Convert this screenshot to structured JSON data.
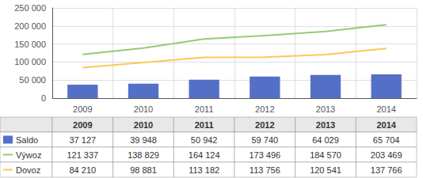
{
  "chart_data": {
    "type": "bar",
    "categories": [
      "2009",
      "2010",
      "2011",
      "2012",
      "2013",
      "2014"
    ],
    "series": [
      {
        "name": "Saldo",
        "type": "bar",
        "values": [
          37127,
          39948,
          50942,
          59740,
          64029,
          65704
        ],
        "value_labels": [
          "37 127",
          "39 948",
          "50 942",
          "59 740",
          "64 029",
          "65 704"
        ]
      },
      {
        "name": "Výwoz",
        "type": "line",
        "values": [
          121337,
          138829,
          164124,
          173496,
          184570,
          203469
        ],
        "value_labels": [
          "121 337",
          "138 829",
          "164 124",
          "173 496",
          "184 570",
          "203 469"
        ]
      },
      {
        "name": "Dovoz",
        "type": "line",
        "values": [
          84210,
          98881,
          113182,
          113756,
          120541,
          137766
        ],
        "value_labels": [
          "84 210",
          "98 881",
          "113 182",
          "113 756",
          "120 541",
          "137 766"
        ]
      }
    ],
    "ylim": [
      0,
      250000
    ],
    "yticks": [
      0,
      {
        "value": 50000,
        "label": "50 000"
      },
      {
        "value": 100000,
        "label": "100 000"
      },
      {
        "value": 150000,
        "label": "150 000"
      },
      {
        "value": 200000,
        "label": "200 000"
      },
      {
        "value": 250000,
        "label": "250 000"
      }
    ],
    "grid": true
  }
}
